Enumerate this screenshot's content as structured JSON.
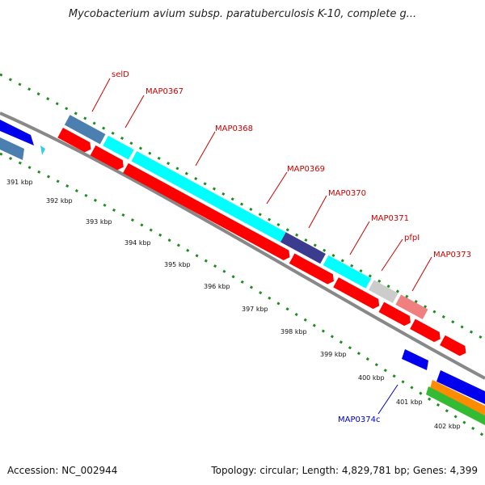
{
  "title": "Mycobacterium avium subsp. paratuberculosis K-10, complete g...",
  "footer": {
    "accession": "Accession: NC_002944",
    "summary": "Topology: circular; Length: 4,829,781 bp; Genes: 4,399"
  },
  "colors": {
    "backbone": "#888888",
    "ticks": "#1e8c1e",
    "forward_cds": "#00ffff",
    "reverse_cds": "#0000ee",
    "orf": "#ff0000",
    "label_forward": "#cc0000",
    "label_reverse": "#0000cc"
  },
  "ticks": [
    "391 kbp",
    "392 kbp",
    "393 kbp",
    "394 kbp",
    "395 kbp",
    "396 kbp",
    "397 kbp",
    "398 kbp",
    "399 kbp",
    "400 kbp",
    "401 kbp",
    "402 kbp"
  ],
  "gene_labels": [
    {
      "name": "selD",
      "strand": "forward"
    },
    {
      "name": "MAP0367",
      "strand": "forward"
    },
    {
      "name": "MAP0368",
      "strand": "forward"
    },
    {
      "name": "MAP0369",
      "strand": "forward"
    },
    {
      "name": "MAP0370",
      "strand": "forward"
    },
    {
      "name": "MAP0371",
      "strand": "forward"
    },
    {
      "name": "pfpI",
      "strand": "forward"
    },
    {
      "name": "MAP0373",
      "strand": "forward"
    },
    {
      "name": "MAP0374c",
      "strand": "reverse"
    }
  ]
}
